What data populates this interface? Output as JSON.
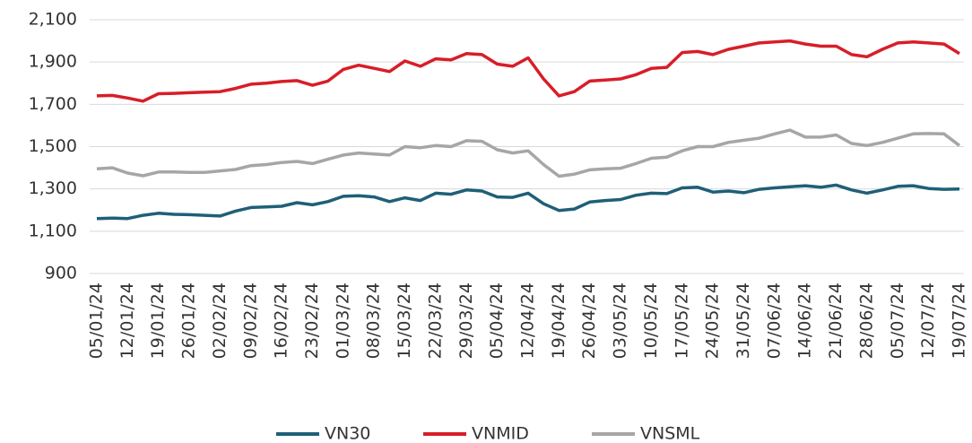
{
  "chart_data": {
    "type": "line",
    "categories": [
      "05/01/24",
      null,
      "12/01/24",
      null,
      "19/01/24",
      null,
      "26/01/24",
      null,
      "02/02/24",
      null,
      "09/02/24",
      null,
      "16/02/24",
      null,
      "23/02/24",
      null,
      "01/03/24",
      null,
      "08/03/24",
      null,
      "15/03/24",
      null,
      "22/03/24",
      null,
      "29/03/24",
      null,
      "05/04/24",
      null,
      "12/04/24",
      null,
      "19/04/24",
      null,
      "26/04/24",
      null,
      "03/05/24",
      null,
      "10/05/24",
      null,
      "17/05/24",
      null,
      "24/05/24",
      null,
      "31/05/24",
      null,
      "07/06/24",
      null,
      "14/06/24",
      null,
      "21/06/24",
      null,
      "28/06/24",
      null,
      "05/07/24",
      null,
      "12/07/24",
      null,
      "19/07/24"
    ],
    "series": [
      {
        "name": "VN30",
        "color": "#1f5f78",
        "values": [
          1160,
          1162,
          1160,
          1175,
          1185,
          1180,
          1178,
          1175,
          1172,
          1195,
          1212,
          1215,
          1218,
          1235,
          1225,
          1240,
          1265,
          1268,
          1262,
          1240,
          1258,
          1245,
          1280,
          1275,
          1295,
          1290,
          1262,
          1260,
          1280,
          1230,
          1198,
          1205,
          1238,
          1245,
          1250,
          1270,
          1280,
          1278,
          1305,
          1308,
          1285,
          1290,
          1282,
          1298,
          1305,
          1310,
          1315,
          1308,
          1318,
          1295,
          1280,
          1295,
          1312,
          1315,
          1302,
          1298,
          1300
        ]
      },
      {
        "name": "VNMID",
        "color": "#d71e28",
        "values": [
          1740,
          1742,
          1730,
          1715,
          1750,
          1752,
          1755,
          1758,
          1760,
          1775,
          1795,
          1800,
          1808,
          1812,
          1790,
          1810,
          1865,
          1885,
          1870,
          1855,
          1905,
          1880,
          1915,
          1910,
          1940,
          1935,
          1890,
          1880,
          1920,
          1820,
          1740,
          1760,
          1810,
          1815,
          1820,
          1840,
          1870,
          1875,
          1945,
          1950,
          1935,
          1960,
          1975,
          1990,
          1995,
          2000,
          1985,
          1975,
          1975,
          1935,
          1925,
          1960,
          1990,
          1995,
          1990,
          1985,
          1940
        ]
      },
      {
        "name": "VNSML",
        "color": "#a6a6a6",
        "values": [
          1395,
          1400,
          1375,
          1362,
          1380,
          1380,
          1378,
          1378,
          1385,
          1392,
          1410,
          1415,
          1425,
          1430,
          1420,
          1440,
          1460,
          1470,
          1465,
          1460,
          1500,
          1495,
          1505,
          1500,
          1528,
          1525,
          1485,
          1470,
          1480,
          1415,
          1360,
          1370,
          1390,
          1395,
          1398,
          1420,
          1445,
          1450,
          1480,
          1500,
          1500,
          1520,
          1530,
          1540,
          1560,
          1578,
          1545,
          1545,
          1555,
          1515,
          1505,
          1520,
          1540,
          1560,
          1562,
          1560,
          1505
        ]
      }
    ],
    "ylim": [
      900,
      2100
    ],
    "yticks": [
      900,
      {
        "value": 1100,
        "label": "1,100"
      },
      {
        "value": 1300,
        "label": "1,300"
      },
      {
        "value": 1500,
        "label": "1,500"
      },
      {
        "value": 1700,
        "label": "1,700"
      },
      {
        "value": 1900,
        "label": "1,900"
      },
      {
        "value": 2100,
        "label": "2,100"
      }
    ],
    "grid": true,
    "legend": "bottom"
  }
}
